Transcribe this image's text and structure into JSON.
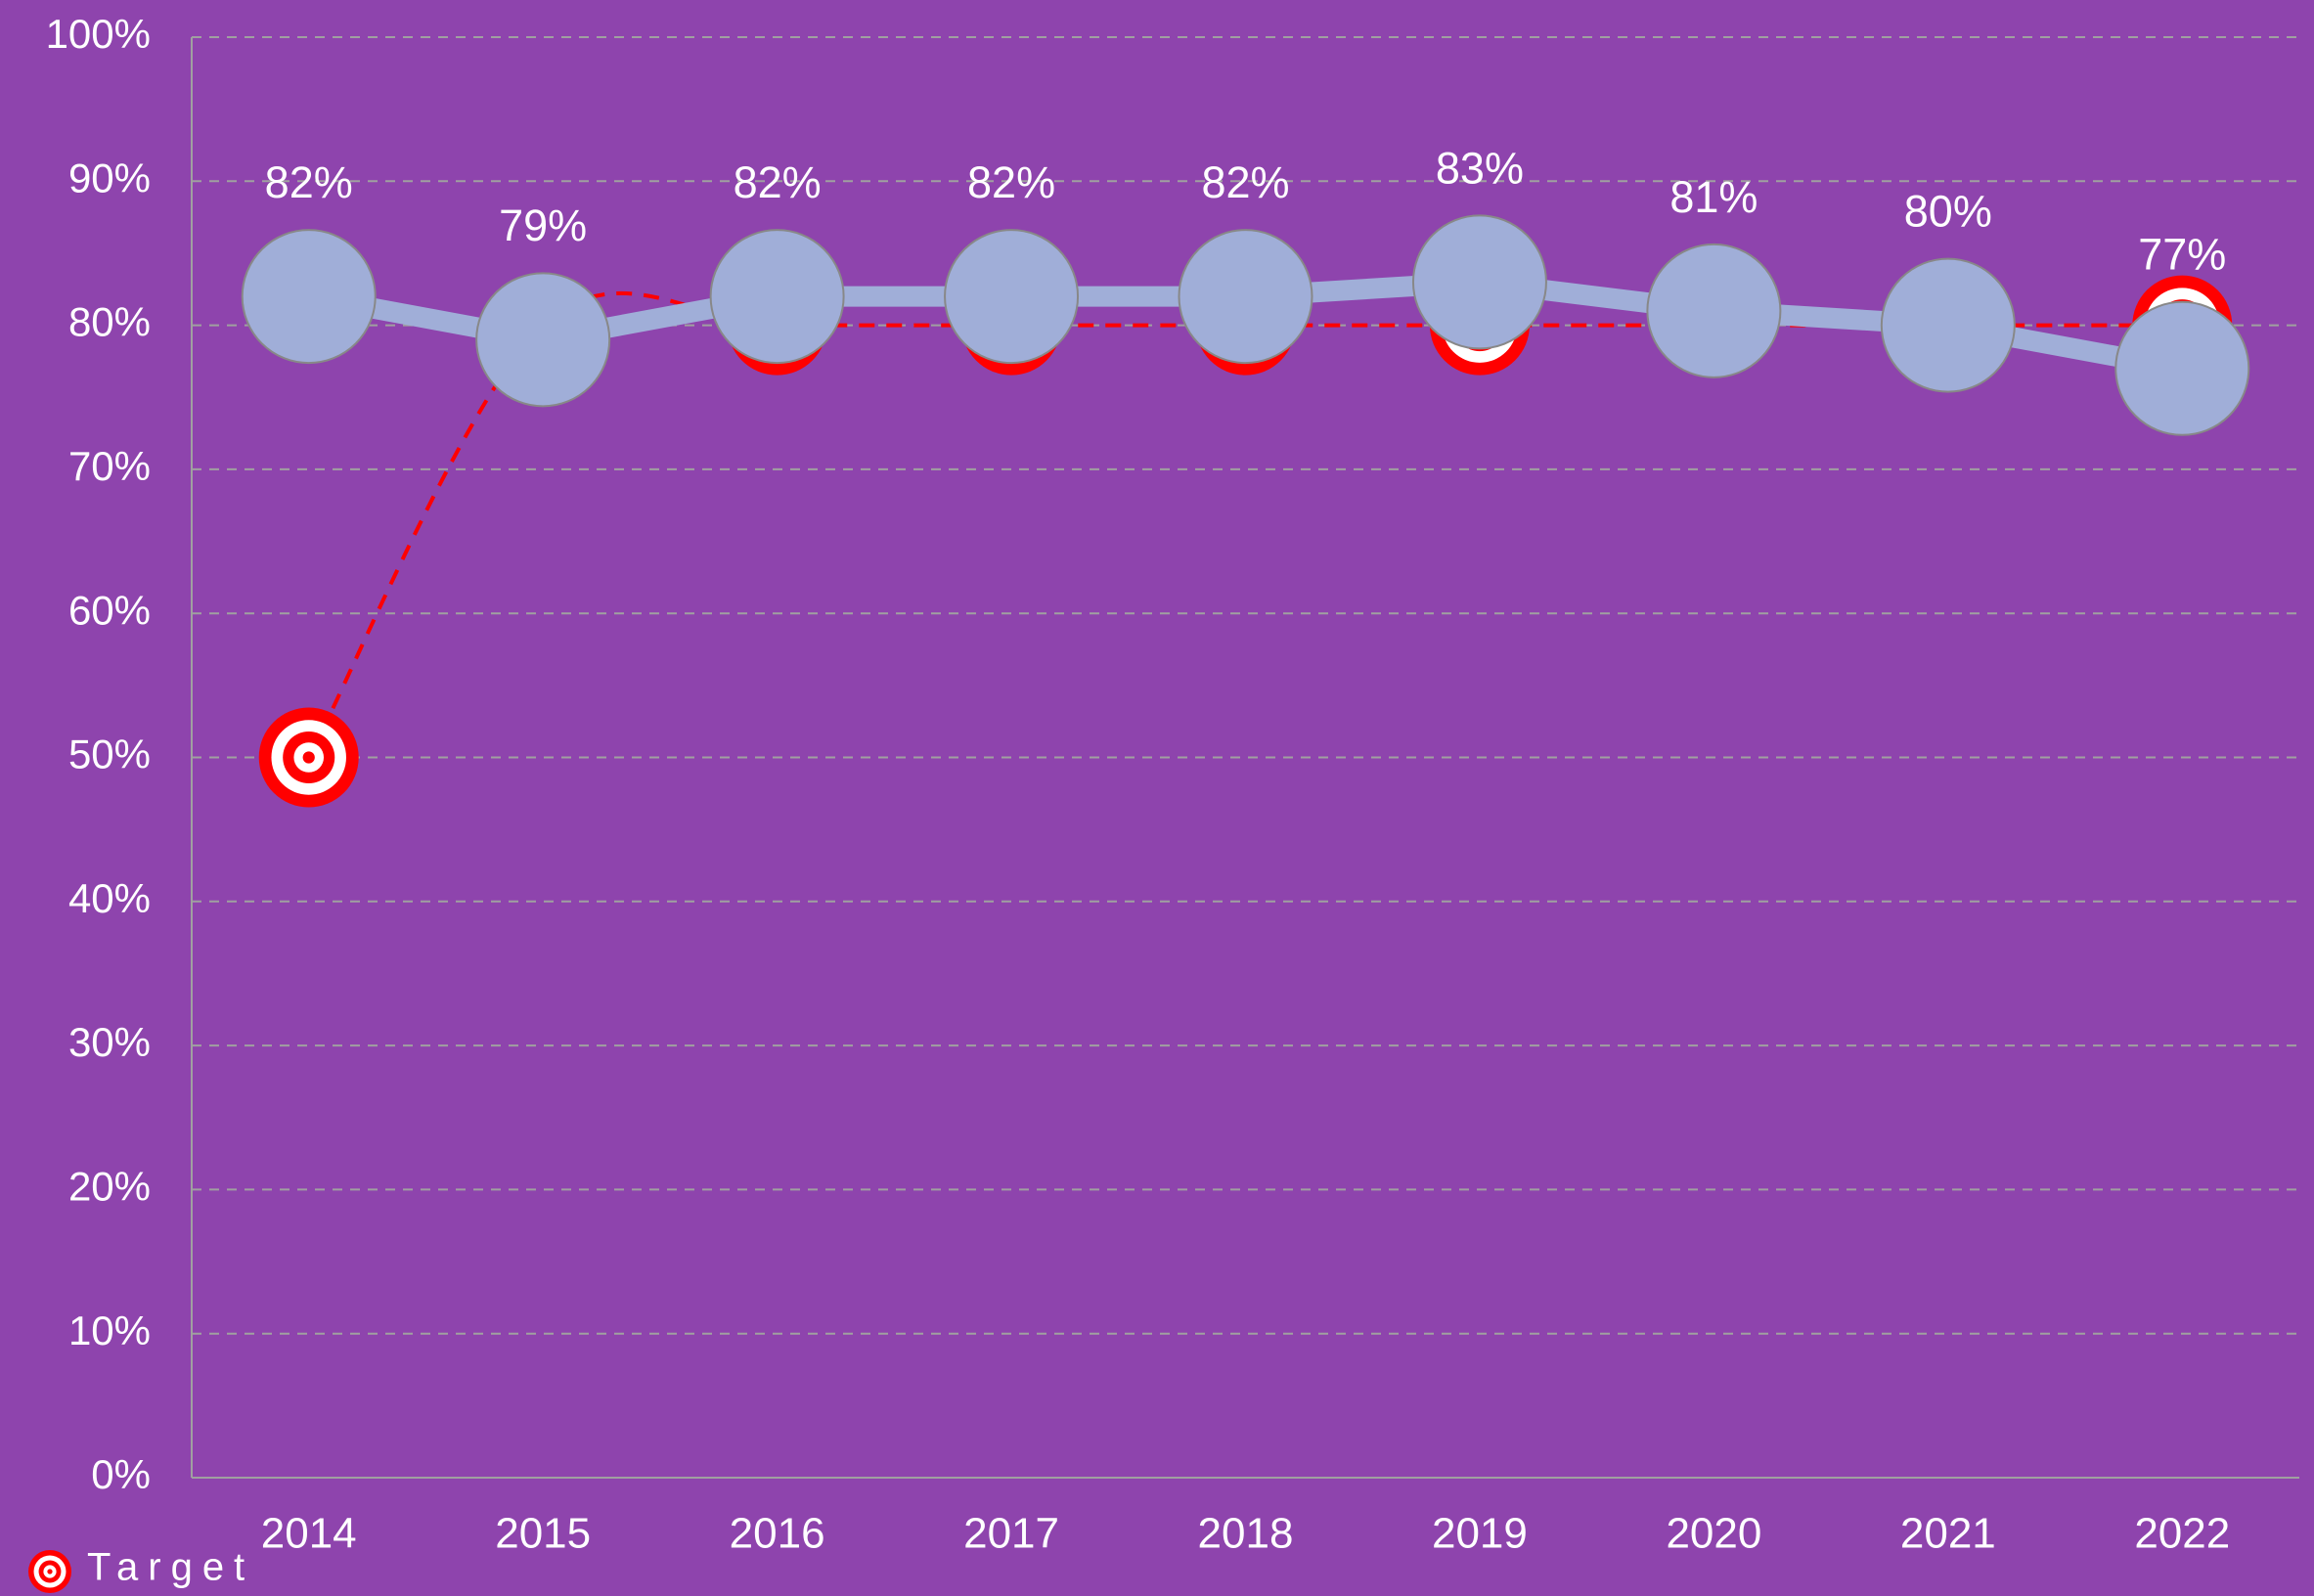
{
  "chart_data": {
    "type": "line",
    "categories": [
      "2014",
      "2015",
      "2016",
      "2017",
      "2018",
      "2019",
      "2020",
      "2021",
      "2022"
    ],
    "series": [
      {
        "name": "Target",
        "color": "#ff0000",
        "values": [
          50,
          80,
          80,
          80,
          80,
          80,
          80,
          80,
          80
        ]
      },
      {
        "color": "#a0aed8",
        "values": [
          82,
          79,
          82,
          82,
          82,
          83,
          81,
          80,
          77
        ],
        "value_labels": [
          "82%",
          "79%",
          "82%",
          "82%",
          "82%",
          "83%",
          "81%",
          "80%",
          "77%"
        ]
      }
    ],
    "ylim": [
      0,
      100
    ],
    "yticks": [
      {
        "value": 0,
        "label": "0%"
      },
      {
        "value": 10,
        "label": "10%"
      },
      {
        "value": 20,
        "label": "20%"
      },
      {
        "value": 30,
        "label": "30%"
      },
      {
        "value": 40,
        "label": "40%"
      },
      {
        "value": 50,
        "label": "50%"
      },
      {
        "value": 60,
        "label": "60%"
      },
      {
        "value": 70,
        "label": "70%"
      },
      {
        "value": 80,
        "label": "80%"
      },
      {
        "value": 90,
        "label": "90%"
      },
      {
        "value": 100,
        "label": "100%"
      }
    ],
    "grid": true,
    "legend": "bottom-left",
    "background": "#8e44ad"
  }
}
